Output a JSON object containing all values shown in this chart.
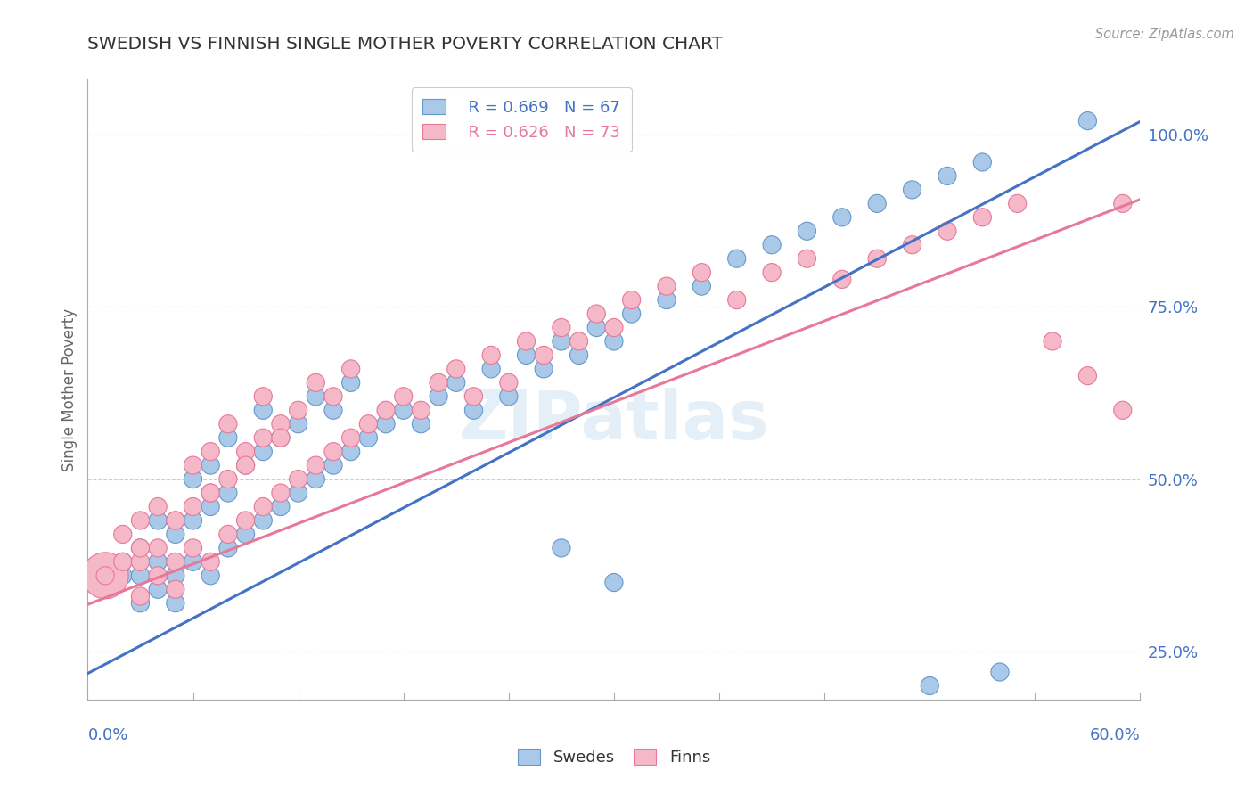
{
  "title": "SWEDISH VS FINNISH SINGLE MOTHER POVERTY CORRELATION CHART",
  "source": "Source: ZipAtlas.com",
  "ylabel": "Single Mother Poverty",
  "xmin": 0.0,
  "xmax": 0.6,
  "ymin": 0.18,
  "ymax": 1.08,
  "yticks": [
    0.25,
    0.5,
    0.75,
    1.0
  ],
  "ytick_labels": [
    "25.0%",
    "50.0%",
    "75.0%",
    "100.0%"
  ],
  "blue_color": "#aac8e8",
  "blue_edge": "#6699cc",
  "pink_color": "#f5b8c8",
  "pink_edge": "#e87898",
  "blue_line_color": "#4472c4",
  "pink_line_color": "#e87898",
  "legend_R_blue": "R = 0.669",
  "legend_N_blue": "N = 67",
  "legend_R_pink": "R = 0.626",
  "legend_N_pink": "N = 73",
  "legend_label_blue": "Swedes",
  "legend_label_pink": "Finns",
  "watermark": "ZIPatlas",
  "background_color": "#ffffff",
  "grid_color": "#cccccc",
  "blue_intercept": 0.218,
  "blue_slope": 1.335,
  "pink_intercept": 0.318,
  "pink_slope": 0.98,
  "blue_scatter_x": [
    0.01,
    0.02,
    0.02,
    0.03,
    0.03,
    0.03,
    0.04,
    0.04,
    0.04,
    0.05,
    0.05,
    0.05,
    0.06,
    0.06,
    0.06,
    0.07,
    0.07,
    0.07,
    0.08,
    0.08,
    0.08,
    0.09,
    0.09,
    0.1,
    0.1,
    0.1,
    0.11,
    0.11,
    0.12,
    0.12,
    0.13,
    0.13,
    0.14,
    0.14,
    0.15,
    0.15,
    0.16,
    0.17,
    0.18,
    0.19,
    0.2,
    0.21,
    0.22,
    0.23,
    0.24,
    0.25,
    0.26,
    0.27,
    0.28,
    0.29,
    0.3,
    0.31,
    0.33,
    0.35,
    0.37,
    0.39,
    0.41,
    0.43,
    0.45,
    0.47,
    0.49,
    0.51,
    0.27,
    0.3,
    0.48,
    0.52,
    0.57
  ],
  "blue_scatter_y": [
    0.34,
    0.36,
    0.38,
    0.32,
    0.36,
    0.4,
    0.34,
    0.38,
    0.44,
    0.32,
    0.36,
    0.42,
    0.38,
    0.44,
    0.5,
    0.36,
    0.46,
    0.52,
    0.4,
    0.48,
    0.56,
    0.42,
    0.52,
    0.44,
    0.54,
    0.6,
    0.46,
    0.56,
    0.48,
    0.58,
    0.5,
    0.62,
    0.52,
    0.6,
    0.54,
    0.64,
    0.56,
    0.58,
    0.6,
    0.58,
    0.62,
    0.64,
    0.6,
    0.66,
    0.62,
    0.68,
    0.66,
    0.7,
    0.68,
    0.72,
    0.7,
    0.74,
    0.76,
    0.78,
    0.82,
    0.84,
    0.86,
    0.88,
    0.9,
    0.92,
    0.94,
    0.96,
    0.4,
    0.35,
    0.2,
    0.22,
    1.02
  ],
  "blue_scatter_size": [
    30,
    30,
    30,
    30,
    30,
    30,
    30,
    30,
    30,
    30,
    30,
    30,
    30,
    30,
    30,
    30,
    30,
    30,
    30,
    30,
    30,
    30,
    30,
    30,
    30,
    30,
    30,
    30,
    30,
    30,
    30,
    30,
    30,
    30,
    30,
    30,
    30,
    30,
    30,
    30,
    30,
    30,
    30,
    30,
    30,
    30,
    30,
    30,
    30,
    30,
    30,
    30,
    30,
    30,
    30,
    30,
    30,
    30,
    30,
    30,
    30,
    30,
    30,
    30,
    30,
    30,
    30
  ],
  "pink_scatter_x": [
    0.01,
    0.02,
    0.02,
    0.03,
    0.03,
    0.03,
    0.04,
    0.04,
    0.04,
    0.05,
    0.05,
    0.05,
    0.06,
    0.06,
    0.06,
    0.07,
    0.07,
    0.07,
    0.08,
    0.08,
    0.08,
    0.09,
    0.09,
    0.1,
    0.1,
    0.1,
    0.11,
    0.11,
    0.12,
    0.12,
    0.13,
    0.13,
    0.14,
    0.14,
    0.15,
    0.15,
    0.16,
    0.17,
    0.18,
    0.19,
    0.2,
    0.21,
    0.22,
    0.23,
    0.24,
    0.25,
    0.26,
    0.27,
    0.28,
    0.29,
    0.3,
    0.31,
    0.33,
    0.35,
    0.37,
    0.39,
    0.41,
    0.43,
    0.45,
    0.47,
    0.49,
    0.51,
    0.53,
    0.55,
    0.57,
    0.59,
    0.01,
    0.03,
    0.05,
    0.07,
    0.09,
    0.11,
    0.59
  ],
  "pink_scatter_y": [
    0.36,
    0.38,
    0.42,
    0.33,
    0.38,
    0.44,
    0.36,
    0.4,
    0.46,
    0.34,
    0.38,
    0.44,
    0.4,
    0.46,
    0.52,
    0.38,
    0.48,
    0.54,
    0.42,
    0.5,
    0.58,
    0.44,
    0.54,
    0.46,
    0.56,
    0.62,
    0.48,
    0.58,
    0.5,
    0.6,
    0.52,
    0.64,
    0.54,
    0.62,
    0.56,
    0.66,
    0.58,
    0.6,
    0.62,
    0.6,
    0.64,
    0.66,
    0.62,
    0.68,
    0.64,
    0.7,
    0.68,
    0.72,
    0.7,
    0.74,
    0.72,
    0.76,
    0.78,
    0.8,
    0.76,
    0.8,
    0.82,
    0.79,
    0.82,
    0.84,
    0.86,
    0.88,
    0.9,
    0.7,
    0.65,
    0.9,
    0.36,
    0.4,
    0.44,
    0.48,
    0.52,
    0.56,
    0.6
  ],
  "pink_scatter_size": [
    200,
    30,
    30,
    30,
    30,
    30,
    30,
    30,
    30,
    30,
    30,
    30,
    30,
    30,
    30,
    30,
    30,
    30,
    30,
    30,
    30,
    30,
    30,
    30,
    30,
    30,
    30,
    30,
    30,
    30,
    30,
    30,
    30,
    30,
    30,
    30,
    30,
    30,
    30,
    30,
    30,
    30,
    30,
    30,
    30,
    30,
    30,
    30,
    30,
    30,
    30,
    30,
    30,
    30,
    30,
    30,
    30,
    30,
    30,
    30,
    30,
    30,
    30,
    30,
    30,
    30,
    30,
    30,
    30,
    30,
    30,
    30,
    30
  ]
}
